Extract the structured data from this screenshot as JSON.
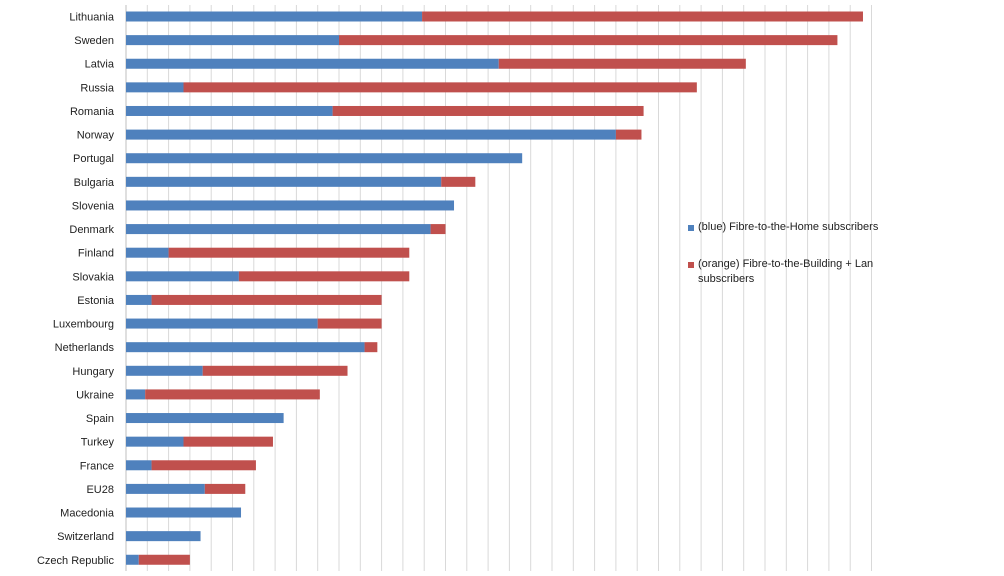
{
  "chart_data": {
    "type": "bar",
    "orientation": "horizontal",
    "stacked": true,
    "title": "",
    "xlabel": "",
    "ylabel": "",
    "xlim": [
      0,
      35
    ],
    "grid": true,
    "legend_position": "right",
    "categories": [
      "Lithuania",
      "Sweden",
      "Latvia",
      "Russia",
      "Romania",
      "Norway",
      "Portugal",
      "Bulgaria",
      "Slovenia",
      "Denmark",
      "Finland",
      "Slovakia",
      "Estonia",
      "Luxembourg",
      "Netherlands",
      "Hungary",
      "Ukraine",
      "Spain",
      "Turkey",
      "France",
      "EU28",
      "Macedonia",
      "Switzerland",
      "Czech Republic"
    ],
    "series": [
      {
        "name": "(blue) Fibre-to-the-Home subscribers",
        "color": "#4f81bd",
        "values": [
          13.9,
          10.0,
          17.5,
          2.7,
          9.7,
          23.0,
          18.6,
          14.8,
          15.4,
          14.3,
          2.0,
          5.3,
          1.2,
          9.0,
          11.2,
          3.6,
          0.9,
          7.4,
          2.7,
          1.2,
          3.7,
          5.4,
          3.5,
          0.6
        ]
      },
      {
        "name": "(orange) Fibre-to-the-Building + Lan subscribers",
        "color": "#c0504d",
        "values": [
          20.7,
          23.4,
          11.6,
          24.1,
          14.6,
          1.2,
          0.0,
          1.6,
          0.0,
          0.7,
          11.3,
          8.0,
          10.8,
          3.0,
          0.6,
          6.8,
          8.2,
          0.0,
          4.2,
          4.9,
          1.9,
          0.0,
          0.0,
          2.4
        ]
      }
    ]
  }
}
